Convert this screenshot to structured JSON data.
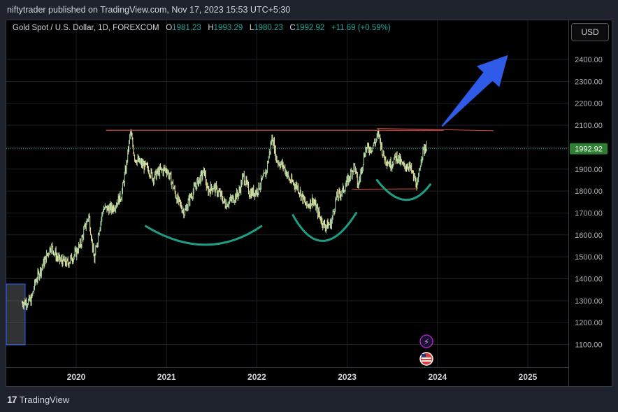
{
  "header": {
    "published": "niftytrader published on TradingView.com, Nov 17, 2023 15:53 UTC+5:30"
  },
  "legend": {
    "symbol": "Gold Spot / U.S. Dollar, 1D, FOREXCOM",
    "o_label": "O",
    "o_value": "1981.23",
    "h_label": "H",
    "h_value": "1993.29",
    "l_label": "L",
    "l_value": "1980.23",
    "c_label": "C",
    "c_value": "1992.92",
    "change": "+11.69 (+0.59%)"
  },
  "currency_button": "USD",
  "price_label": "1992.92",
  "footer": {
    "brand": "TradingView",
    "brand_mark": "17"
  },
  "colors": {
    "background": "#000000",
    "candle_up": "#a5d6a7",
    "candle_down": "#f0e6a0",
    "resistance_line": "#d9473d",
    "curve": "#1f9e86",
    "arrow": "#2f5be8",
    "price_tag": "#2e7d32"
  },
  "chart_data": {
    "type": "line",
    "title": "Gold Spot / U.S. Dollar, 1D, FOREXCOM",
    "xlabel": "",
    "ylabel": "",
    "x_ticks": [
      "2020",
      "2021",
      "2022",
      "2023",
      "2024",
      "2025"
    ],
    "y_ticks": [
      "1100.00",
      "1200.00",
      "1300.00",
      "1400.00",
      "1500.00",
      "1600.00",
      "1700.00",
      "1800.00",
      "1900.00",
      "2000.00",
      "2100.00",
      "2200.00",
      "2300.00",
      "2400.00"
    ],
    "ylim": [
      1000,
      2480
    ],
    "grid": true,
    "series": [
      {
        "points": [
          [
            2019.4,
            1290
          ],
          [
            2019.5,
            1300
          ],
          [
            2019.55,
            1390
          ],
          [
            2019.65,
            1480
          ],
          [
            2019.72,
            1550
          ],
          [
            2019.8,
            1490
          ],
          [
            2019.9,
            1470
          ],
          [
            2020.0,
            1520
          ],
          [
            2020.05,
            1560
          ],
          [
            2020.1,
            1640
          ],
          [
            2020.14,
            1690
          ],
          [
            2020.2,
            1480
          ],
          [
            2020.25,
            1620
          ],
          [
            2020.3,
            1720
          ],
          [
            2020.4,
            1720
          ],
          [
            2020.5,
            1780
          ],
          [
            2020.55,
            1900
          ],
          [
            2020.6,
            2070
          ],
          [
            2020.65,
            1950
          ],
          [
            2020.7,
            1930
          ],
          [
            2020.8,
            1900
          ],
          [
            2020.85,
            1860
          ],
          [
            2020.92,
            1890
          ],
          [
            2021.0,
            1900
          ],
          [
            2021.05,
            1850
          ],
          [
            2021.12,
            1760
          ],
          [
            2021.2,
            1700
          ],
          [
            2021.25,
            1760
          ],
          [
            2021.33,
            1830
          ],
          [
            2021.42,
            1890
          ],
          [
            2021.45,
            1800
          ],
          [
            2021.52,
            1820
          ],
          [
            2021.6,
            1780
          ],
          [
            2021.65,
            1740
          ],
          [
            2021.72,
            1760
          ],
          [
            2021.8,
            1790
          ],
          [
            2021.85,
            1870
          ],
          [
            2021.92,
            1790
          ],
          [
            2022.0,
            1800
          ],
          [
            2022.1,
            1880
          ],
          [
            2022.17,
            2050
          ],
          [
            2022.22,
            1940
          ],
          [
            2022.3,
            1910
          ],
          [
            2022.36,
            1850
          ],
          [
            2022.45,
            1820
          ],
          [
            2022.55,
            1730
          ],
          [
            2022.62,
            1760
          ],
          [
            2022.7,
            1680
          ],
          [
            2022.75,
            1640
          ],
          [
            2022.82,
            1650
          ],
          [
            2022.88,
            1770
          ],
          [
            2022.95,
            1800
          ],
          [
            2023.0,
            1840
          ],
          [
            2023.08,
            1920
          ],
          [
            2023.12,
            1820
          ],
          [
            2023.2,
            1990
          ],
          [
            2023.28,
            2000
          ],
          [
            2023.35,
            2060
          ],
          [
            2023.4,
            1960
          ],
          [
            2023.48,
            1920
          ],
          [
            2023.55,
            1960
          ],
          [
            2023.62,
            1910
          ],
          [
            2023.68,
            1920
          ],
          [
            2023.72,
            1880
          ],
          [
            2023.78,
            1820
          ],
          [
            2023.82,
            1960
          ],
          [
            2023.86,
            2000
          ],
          [
            2023.88,
            1993
          ]
        ]
      }
    ],
    "annotations": {
      "resistance_line": {
        "x": [
          2020.33,
          2024.62
        ],
        "y": [
          2077,
          2077
        ]
      },
      "arrow": {
        "from": [
          2024.05,
          2095
        ],
        "to": [
          2024.78,
          2420
        ]
      }
    }
  }
}
